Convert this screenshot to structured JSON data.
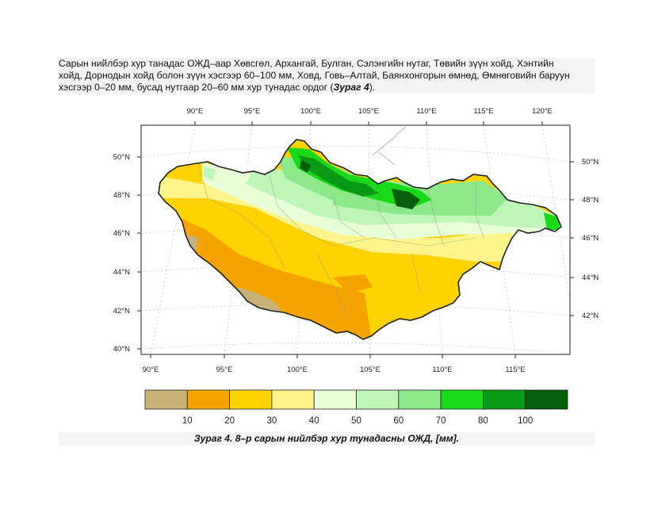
{
  "paragraph": {
    "line1": "Сарын нийлбэр хур танадас ОЖД–аар Хөвсгөл, Архангай, Булган, Сэлэнгийн нутаг, Төвийн зүүн хойд, Хэнтийн",
    "line2": "хойд, Дорнодын хойд болон зүүн хэсгээр 60–100 мм, Ховд, Говь–Алтай, Баянхонгорын өмнөд, Өмнөговийн баруун",
    "line3_pre": "хэсгээр 0–20 мм, бусад нутгаар 20–60 мм хур тунадас ордог (",
    "line3_ref": "Зураг 4",
    "line3_post": ")."
  },
  "map": {
    "top_lon_labels": [
      "90°E",
      "95°E",
      "100°E",
      "105°E",
      "110°E",
      "115°E",
      "120°E"
    ],
    "left_lat_labels": [
      "50°N",
      "48°N",
      "46°N",
      "44°N",
      "42°N",
      "40°N"
    ],
    "right_lat_labels": [
      "50°N",
      "48°N",
      "46°N",
      "44°N",
      "42°N"
    ],
    "bottom_lon_labels": [
      "90°E",
      "95°E",
      "100°E",
      "105°E",
      "110°E",
      "115°E"
    ]
  },
  "legend": {
    "colors": [
      "#c8b07a",
      "#f5a300",
      "#ffd200",
      "#fff38c",
      "#e8ffd8",
      "#c0f5b8",
      "#8de88a",
      "#19d81a",
      "#089a14",
      "#075e0c"
    ],
    "labels": [
      "10",
      "20",
      "30",
      "40",
      "50",
      "60",
      "70",
      "80",
      "100"
    ]
  },
  "caption": "Зураг 4. 8–р сарын нийлбэр хур тунадасны ОЖД, [мм]."
}
